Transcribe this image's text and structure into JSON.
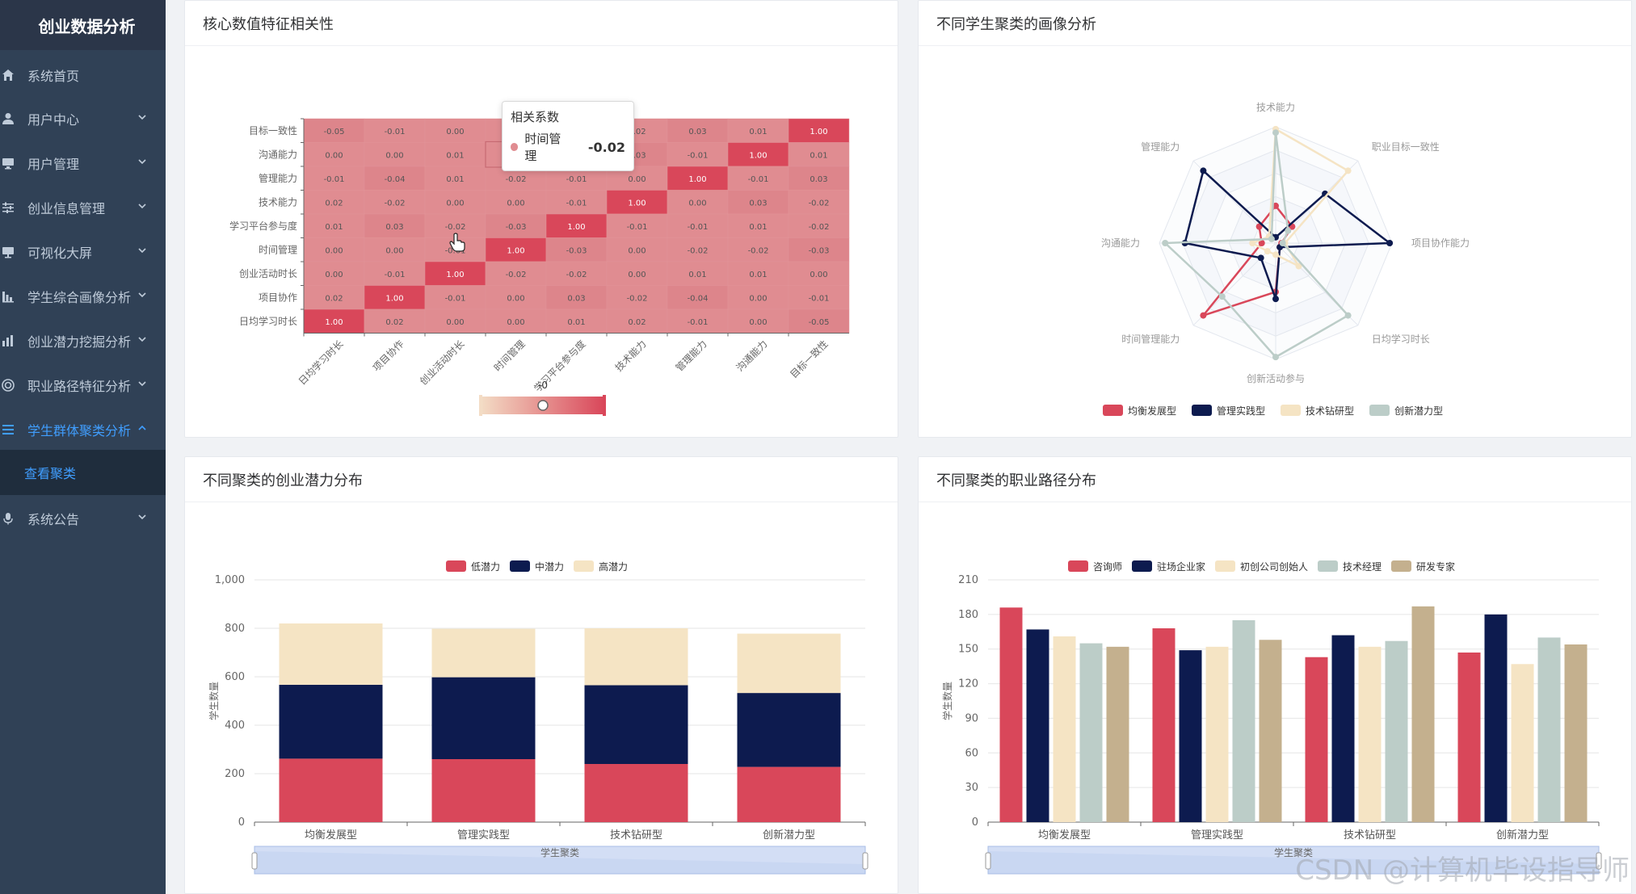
{
  "app": {
    "title": "创业数据分析"
  },
  "sidebar": {
    "items": [
      {
        "label": "系统首页",
        "icon": "home-icon",
        "has_children": false
      },
      {
        "label": "用户中心",
        "icon": "user-icon",
        "has_children": true
      },
      {
        "label": "用户管理",
        "icon": "monitor-icon",
        "has_children": true
      },
      {
        "label": "创业信息管理",
        "icon": "sliders-icon",
        "has_children": true
      },
      {
        "label": "可视化大屏",
        "icon": "screen-icon",
        "has_children": true
      },
      {
        "label": "学生综合画像分析",
        "icon": "chart-icon",
        "has_children": true
      },
      {
        "label": "创业潜力挖掘分析",
        "icon": "bar-chart-icon",
        "has_children": true
      },
      {
        "label": "职业路径特征分析",
        "icon": "circle-icon",
        "has_children": true
      },
      {
        "label": "学生群体聚类分析",
        "icon": "list-icon",
        "has_children": true,
        "active": true
      },
      {
        "label": "系统公告",
        "icon": "mic-icon",
        "has_children": true
      }
    ],
    "submenu": {
      "label": "查看聚类"
    }
  },
  "colors": {
    "red": "#d9475a",
    "navy": "#0d1b4f",
    "beige": "#f5e4c4",
    "sage": "#bccdc8",
    "tan": "#c4b08e",
    "sidebar_bg": "#304156",
    "active": "#409eff"
  },
  "cards": {
    "heatmap": {
      "title": "核心数值特征相关性"
    },
    "radar": {
      "title": "不同学生聚类的画像分析"
    },
    "potential": {
      "title": "不同聚类的创业潜力分布"
    },
    "career": {
      "title": "不同聚类的职业路径分布"
    }
  },
  "tooltip": {
    "title": "相关系数",
    "series": "时间管理",
    "value": "-0.02"
  },
  "visual_map": {
    "value_label": "-0"
  },
  "watermark": "CSDN @计算机毕设指导师",
  "chart_data": [
    {
      "type": "heatmap",
      "title": "核心数值特征相关性",
      "x_categories": [
        "日均学习时长",
        "项目协作",
        "创业活动时长",
        "时间管理",
        "学习平台参与度",
        "技术能力",
        "管理能力",
        "沟通能力",
        "目标一致性"
      ],
      "y_categories": [
        "目标一致性",
        "沟通能力",
        "管理能力",
        "技术能力",
        "学习平台参与度",
        "时间管理",
        "创业活动时长",
        "项目协作",
        "日均学习时长"
      ],
      "values": [
        [
          "-0.05",
          "-0.01",
          "0.00",
          "-0.01",
          "-0.01",
          "0.02",
          "0.03",
          "0.01",
          "1.00"
        ],
        [
          "0.00",
          "0.00",
          "0.01",
          "0.02",
          "-0.01",
          "0.03",
          "-0.01",
          "1.00",
          "0.01"
        ],
        [
          "-0.01",
          "-0.04",
          "0.01",
          "-0.02",
          "-0.01",
          "0.00",
          "1.00",
          "-0.01",
          "0.03"
        ],
        [
          "0.02",
          "-0.02",
          "0.00",
          "0.00",
          "-0.01",
          "1.00",
          "0.00",
          "0.03",
          "-0.02"
        ],
        [
          "0.01",
          "0.03",
          "-0.02",
          "-0.03",
          "1.00",
          "-0.01",
          "-0.01",
          "0.01",
          "-0.02"
        ],
        [
          "0.00",
          "0.00",
          "-0.01",
          "1.00",
          "-0.03",
          "0.00",
          "-0.02",
          "-0.02",
          "-0.03"
        ],
        [
          "0.00",
          "-0.01",
          "1.00",
          "-0.02",
          "-0.02",
          "0.00",
          "0.01",
          "0.01",
          "0.00"
        ],
        [
          "0.02",
          "1.00",
          "-0.01",
          "0.00",
          "0.03",
          "-0.02",
          "-0.04",
          "0.00",
          "-0.01"
        ],
        [
          "1.00",
          "0.02",
          "0.00",
          "0.00",
          "0.01",
          "0.02",
          "-0.01",
          "0.00",
          "-0.05"
        ]
      ]
    },
    {
      "type": "radar",
      "title": "不同学生聚类的画像分析",
      "indicators": [
        "技术能力",
        "职业目标一致性",
        "项目协作能力",
        "日均学习时长",
        "创新活动参与",
        "时间管理能力",
        "沟通能力",
        "管理能力"
      ],
      "series": [
        {
          "name": "均衡发展型",
          "values": [
            0.32,
            0.2,
            0.05,
            0.05,
            0.42,
            0.88,
            0.12,
            0.2
          ]
        },
        {
          "name": "管理实践型",
          "values": [
            0.05,
            0.6,
            0.98,
            0.05,
            0.48,
            0.18,
            0.78,
            0.88
          ]
        },
        {
          "name": "技术钻研型",
          "values": [
            0.98,
            0.88,
            0.08,
            0.28,
            0.1,
            0.1,
            0.2,
            0.08
          ]
        },
        {
          "name": "创新潜力型",
          "values": [
            0.95,
            0.15,
            0.06,
            0.88,
            0.98,
            0.65,
            0.95,
            0.05
          ]
        }
      ]
    },
    {
      "type": "bar",
      "title": "不同聚类的创业潜力分布",
      "stacked": true,
      "categories": [
        "均衡发展型",
        "管理实践型",
        "技术钻研型",
        "创新潜力型"
      ],
      "series": [
        {
          "name": "低潜力",
          "values": [
            262,
            260,
            240,
            228
          ]
        },
        {
          "name": "中潜力",
          "values": [
            305,
            338,
            325,
            305
          ]
        },
        {
          "name": "高潜力",
          "values": [
            253,
            200,
            235,
            245
          ]
        }
      ],
      "ylabel": "学生数量",
      "xlabel": "学生聚类",
      "ylim": [
        0,
        1000
      ],
      "y_ticks": [
        "0",
        "200",
        "400",
        "600",
        "800",
        "1,000"
      ]
    },
    {
      "type": "bar",
      "title": "不同聚类的职业路径分布",
      "stacked": false,
      "categories": [
        "均衡发展型",
        "管理实践型",
        "技术钻研型",
        "创新潜力型"
      ],
      "series": [
        {
          "name": "咨询师",
          "values": [
            186,
            168,
            143,
            147
          ]
        },
        {
          "name": "驻场企业家",
          "values": [
            167,
            149,
            162,
            180
          ]
        },
        {
          "name": "初创公司创始人",
          "values": [
            161,
            152,
            152,
            137
          ]
        },
        {
          "name": "技术经理",
          "values": [
            155,
            175,
            157,
            160
          ]
        },
        {
          "name": "研发专家",
          "values": [
            152,
            158,
            187,
            154
          ]
        }
      ],
      "ylabel": "学生数量",
      "xlabel": "学生聚类",
      "ylim": [
        0,
        210
      ],
      "y_ticks": [
        "0",
        "30",
        "60",
        "90",
        "120",
        "150",
        "180",
        "210"
      ]
    }
  ]
}
